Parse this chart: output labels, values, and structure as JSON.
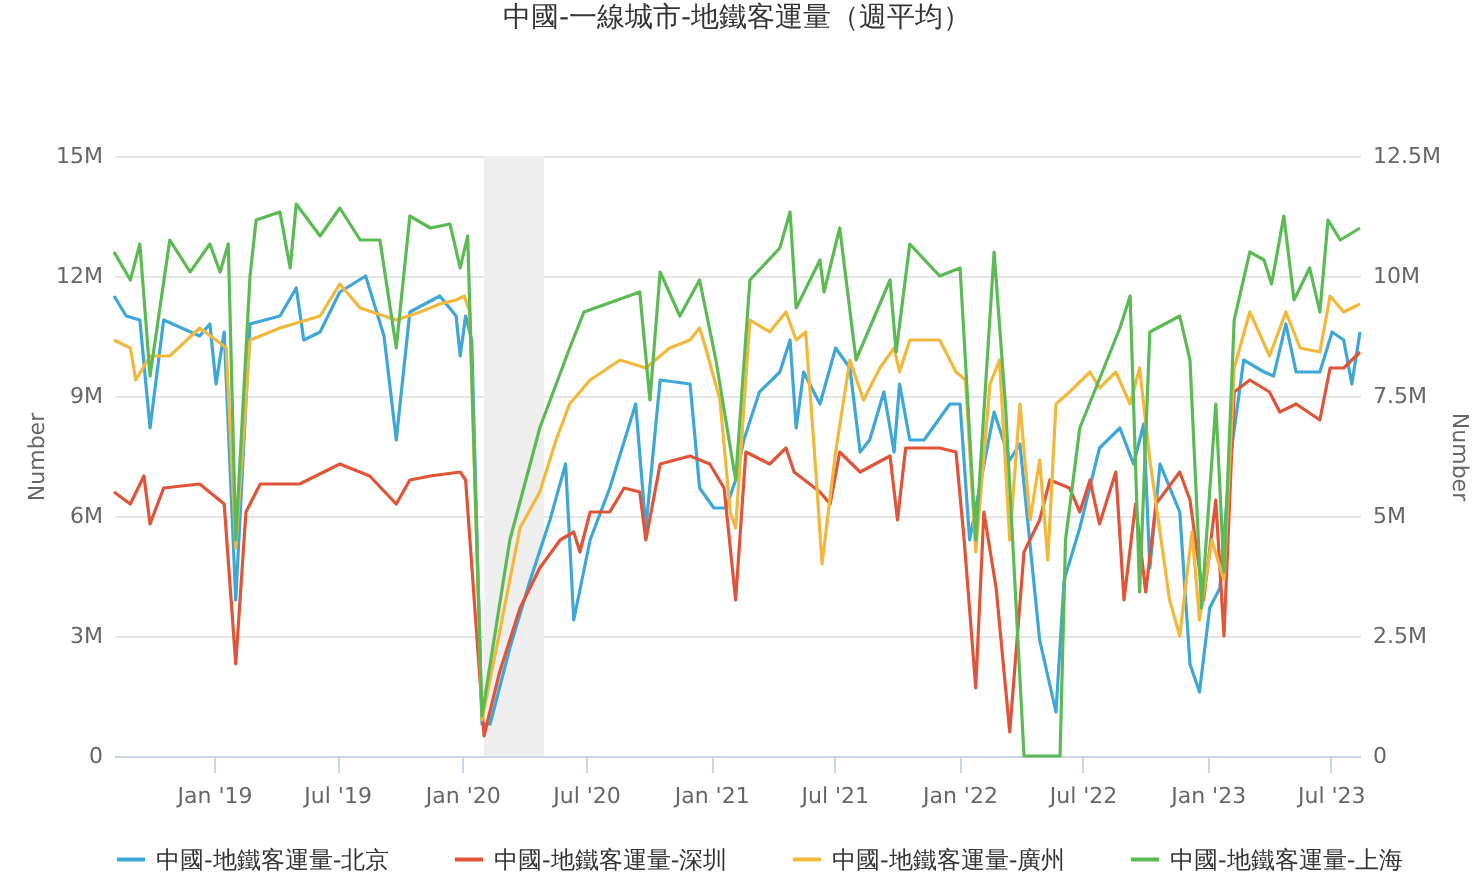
{
  "chart_data": {
    "type": "line",
    "title": "中國-一線城市-地鐵客運量（週平均）",
    "ylabel": "Number",
    "y2label": "Number",
    "xlim": [
      "2018-08-07",
      "2023-08-13"
    ],
    "xticks": [
      {
        "value": "2019-01-01",
        "label": "Jan '19"
      },
      {
        "value": "2019-07-01",
        "label": "Jul '19"
      },
      {
        "value": "2020-01-01",
        "label": "Jan '20"
      },
      {
        "value": "2020-07-01",
        "label": "Jul '20"
      },
      {
        "value": "2021-01-01",
        "label": "Jan '21"
      },
      {
        "value": "2021-07-01",
        "label": "Jul '21"
      },
      {
        "value": "2022-01-01",
        "label": "Jan '22"
      },
      {
        "value": "2022-07-01",
        "label": "Jul '22"
      },
      {
        "value": "2023-01-01",
        "label": "Jan '23"
      },
      {
        "value": "2023-07-01",
        "label": "Jul '23"
      }
    ],
    "ylim": [
      0,
      15
    ],
    "yticks": [
      {
        "value": 0,
        "label": "0"
      },
      {
        "value": 3,
        "label": "3M"
      },
      {
        "value": 6,
        "label": "6M"
      },
      {
        "value": 9,
        "label": "9M"
      },
      {
        "value": 12,
        "label": "12M"
      },
      {
        "value": 15,
        "label": "15M"
      }
    ],
    "y2lim": [
      0,
      12.5
    ],
    "y2ticks": [
      {
        "value": 0,
        "label": "0"
      },
      {
        "value": 2.5,
        "label": "2.5M"
      },
      {
        "value": 5,
        "label": "5M"
      },
      {
        "value": 7.5,
        "label": "7.5M"
      },
      {
        "value": 10,
        "label": "10M"
      },
      {
        "value": 12.5,
        "label": "12.5M"
      }
    ],
    "grid": "y",
    "legend": "bottom",
    "marker": "none",
    "line_style": "solid",
    "bands": [
      {
        "axis": "x",
        "from": "2020-02-02",
        "to": "2020-04-30",
        "color": "#eeeeee"
      }
    ],
    "series": [
      {
        "name": "中國-地鐵客運量-北京",
        "color": "#3ea7d8",
        "x": [
          "2018-08-07",
          "2018-08-25",
          "2018-09-14",
          "2018-09-29",
          "2018-10-19",
          "2018-12-11",
          "2018-12-26",
          "2019-01-04",
          "2019-01-16",
          "2019-02-02",
          "2019-02-23",
          "2019-04-08",
          "2019-05-02",
          "2019-05-13",
          "2019-06-06",
          "2019-07-05",
          "2019-08-12",
          "2019-09-08",
          "2019-09-26",
          "2019-10-16",
          "2019-11-29",
          "2019-12-23",
          "2019-12-29",
          "2020-01-06",
          "2020-01-15",
          "2020-01-30",
          "2020-02-11",
          "2020-03-11",
          "2020-04-10",
          "2020-05-09",
          "2020-06-01",
          "2020-06-13",
          "2020-07-07",
          "2020-08-05",
          "2020-09-12",
          "2020-09-27",
          "2020-10-18",
          "2020-12-01",
          "2020-12-15",
          "2021-01-05",
          "2021-01-23",
          "2021-02-06",
          "2021-02-18",
          "2021-03-13",
          "2021-04-12",
          "2021-04-27",
          "2021-05-06",
          "2021-05-17",
          "2021-06-10",
          "2021-07-03",
          "2021-07-24",
          "2021-08-08",
          "2021-08-22",
          "2021-09-12",
          "2021-09-27",
          "2021-10-05",
          "2021-10-20",
          "2021-11-10",
          "2021-12-18",
          "2022-01-02",
          "2022-01-16",
          "2022-02-21",
          "2022-03-16",
          "2022-03-31",
          "2022-04-29",
          "2022-05-23",
          "2022-06-04",
          "2022-06-27",
          "2022-07-26",
          "2022-08-25",
          "2022-09-14",
          "2022-09-29",
          "2022-10-08",
          "2022-10-23",
          "2022-11-21",
          "2022-12-06",
          "2022-12-20",
          "2023-01-04",
          "2023-01-19",
          "2023-02-03",
          "2023-02-23",
          "2023-03-25",
          "2023-04-08",
          "2023-04-26",
          "2023-05-11",
          "2023-06-15",
          "2023-07-03",
          "2023-07-20",
          "2023-08-01",
          "2023-08-13"
        ],
        "values": [
          11.5,
          11.0,
          10.9,
          8.2,
          10.9,
          10.5,
          10.8,
          9.3,
          10.6,
          3.9,
          10.8,
          11.0,
          11.7,
          10.4,
          10.6,
          11.6,
          12.0,
          10.5,
          7.9,
          11.1,
          11.5,
          11.0,
          10.0,
          11.0,
          10.4,
          0.8,
          0.8,
          2.7,
          4.4,
          5.9,
          7.3,
          3.4,
          5.4,
          6.7,
          8.8,
          5.7,
          9.4,
          9.3,
          6.7,
          6.2,
          6.2,
          6.9,
          7.9,
          9.1,
          9.6,
          10.4,
          8.2,
          9.6,
          8.8,
          10.2,
          9.7,
          7.6,
          7.9,
          9.1,
          7.6,
          9.3,
          7.9,
          7.9,
          8.8,
          8.8,
          5.4,
          8.6,
          7.4,
          7.8,
          2.9,
          1.1,
          4.4,
          5.7,
          7.7,
          8.2,
          7.3,
          8.3,
          4.7,
          7.3,
          6.1,
          2.3,
          1.6,
          3.7,
          4.2,
          7.4,
          9.9,
          9.6,
          9.5,
          10.8,
          9.6,
          9.6,
          10.6,
          10.4,
          9.3,
          10.6
        ]
      },
      {
        "name": "中國-地鐵客運量-深圳",
        "color": "#e0553a",
        "x": [
          "2018-08-07",
          "2018-08-31",
          "2018-09-20",
          "2018-09-29",
          "2018-10-19",
          "2018-12-11",
          "2019-01-16",
          "2019-02-02",
          "2019-02-17",
          "2019-03-10",
          "2019-05-07",
          "2019-07-05",
          "2019-08-18",
          "2019-09-26",
          "2019-10-16",
          "2019-11-15",
          "2019-12-29",
          "2020-01-06",
          "2020-02-02",
          "2020-02-25",
          "2020-03-26",
          "2020-04-24",
          "2020-05-24",
          "2020-06-13",
          "2020-06-22",
          "2020-07-07",
          "2020-08-05",
          "2020-08-26",
          "2020-09-18",
          "2020-09-27",
          "2020-10-18",
          "2020-12-01",
          "2020-12-30",
          "2021-01-20",
          "2021-02-06",
          "2021-02-21",
          "2021-03-28",
          "2021-04-21",
          "2021-05-03",
          "2021-06-10",
          "2021-06-25",
          "2021-07-09",
          "2021-08-08",
          "2021-09-21",
          "2021-10-02",
          "2021-10-14",
          "2021-12-03",
          "2021-12-27",
          "2022-01-08",
          "2022-01-25",
          "2022-02-06",
          "2022-02-24",
          "2022-03-16",
          "2022-04-06",
          "2022-04-29",
          "2022-05-14",
          "2022-06-12",
          "2022-06-27",
          "2022-07-12",
          "2022-07-26",
          "2022-08-19",
          "2022-08-31",
          "2022-09-17",
          "2022-10-02",
          "2022-10-17",
          "2022-11-21",
          "2022-12-06",
          "2022-12-26",
          "2023-01-13",
          "2023-01-25",
          "2023-02-09",
          "2023-03-04",
          "2023-04-02",
          "2023-04-17",
          "2023-05-11",
          "2023-06-15",
          "2023-06-30",
          "2023-07-20",
          "2023-08-13"
        ],
        "values": [
          6.6,
          6.3,
          7.0,
          5.8,
          6.7,
          6.8,
          6.3,
          2.3,
          6.1,
          6.8,
          6.8,
          7.3,
          7.0,
          6.3,
          6.9,
          7.0,
          7.1,
          6.9,
          0.5,
          2.1,
          3.7,
          4.7,
          5.4,
          5.6,
          5.1,
          6.1,
          6.1,
          6.7,
          6.6,
          5.4,
          7.3,
          7.5,
          7.3,
          6.7,
          3.9,
          7.6,
          7.3,
          7.7,
          7.1,
          6.6,
          6.3,
          7.6,
          7.1,
          7.5,
          5.9,
          7.7,
          7.7,
          7.6,
          5.4,
          1.7,
          6.1,
          4.2,
          0.6,
          5.1,
          5.9,
          6.9,
          6.7,
          6.1,
          6.9,
          5.8,
          7.1,
          3.9,
          6.3,
          4.1,
          6.3,
          7.1,
          6.4,
          3.9,
          6.4,
          3.0,
          9.1,
          9.4,
          9.1,
          8.6,
          8.8,
          8.4,
          9.7,
          9.7,
          10.1
        ]
      },
      {
        "name": "中國-地鐵客運量-廣州",
        "color": "#f2b83c",
        "x": [
          "2018-08-07",
          "2018-08-31",
          "2018-09-08",
          "2018-09-29",
          "2018-10-28",
          "2018-12-11",
          "2019-01-04",
          "2019-01-19",
          "2019-02-02",
          "2019-02-23",
          "2019-04-08",
          "2019-06-06",
          "2019-07-05",
          "2019-08-04",
          "2019-09-26",
          "2019-10-31",
          "2019-11-29",
          "2019-12-23",
          "2020-01-04",
          "2020-01-12",
          "2020-01-30",
          "2020-02-25",
          "2020-03-26",
          "2020-04-24",
          "2020-05-18",
          "2020-06-07",
          "2020-07-07",
          "2020-08-20",
          "2020-09-27",
          "2020-11-01",
          "2020-12-01",
          "2020-12-15",
          "2020-12-24",
          "2021-01-14",
          "2021-01-29",
          "2021-02-06",
          "2021-02-27",
          "2021-03-28",
          "2021-04-21",
          "2021-05-06",
          "2021-05-20",
          "2021-06-04",
          "2021-06-13",
          "2021-07-03",
          "2021-07-24",
          "2021-08-13",
          "2021-09-06",
          "2021-09-27",
          "2021-10-05",
          "2021-10-20",
          "2021-12-03",
          "2021-12-27",
          "2022-01-10",
          "2022-01-25",
          "2022-02-15",
          "2022-03-01",
          "2022-03-16",
          "2022-03-31",
          "2022-04-15",
          "2022-04-29",
          "2022-05-11",
          "2022-05-23",
          "2022-06-12",
          "2022-07-12",
          "2022-07-26",
          "2022-08-19",
          "2022-09-09",
          "2022-09-23",
          "2022-10-08",
          "2022-11-06",
          "2022-11-21",
          "2022-12-09",
          "2022-12-20",
          "2023-01-07",
          "2023-01-25",
          "2023-02-09",
          "2023-03-04",
          "2023-04-02",
          "2023-04-26",
          "2023-05-17",
          "2023-06-15",
          "2023-06-30",
          "2023-07-20",
          "2023-08-13"
        ],
        "values": [
          10.4,
          10.2,
          9.4,
          10.0,
          10.0,
          10.7,
          10.4,
          10.2,
          5.2,
          10.4,
          10.7,
          11.0,
          11.8,
          11.2,
          10.9,
          11.1,
          11.3,
          11.4,
          11.5,
          11.1,
          0.9,
          3.1,
          5.7,
          6.6,
          7.9,
          8.8,
          9.4,
          9.9,
          9.7,
          10.2,
          10.4,
          10.7,
          10.2,
          8.9,
          6.1,
          5.7,
          10.9,
          10.6,
          11.1,
          10.4,
          10.6,
          7.1,
          4.8,
          7.6,
          9.9,
          8.9,
          9.7,
          10.2,
          9.6,
          10.4,
          10.4,
          9.6,
          9.4,
          5.1,
          9.3,
          9.9,
          5.4,
          8.8,
          5.9,
          7.4,
          4.9,
          8.8,
          9.1,
          9.6,
          9.2,
          9.6,
          8.8,
          9.7,
          7.4,
          3.9,
          3.0,
          5.6,
          3.4,
          5.4,
          4.4,
          9.7,
          11.1,
          10.0,
          11.1,
          10.2,
          10.1,
          11.5,
          11.1,
          11.3
        ]
      },
      {
        "name": "中國-地鐵客運量-上海",
        "color": "#5cba55",
        "x": [
          "2018-08-07",
          "2018-08-31",
          "2018-09-14",
          "2018-09-29",
          "2018-10-28",
          "2018-11-27",
          "2018-12-26",
          "2019-01-10",
          "2019-01-22",
          "2019-02-02",
          "2019-02-23",
          "2019-03-04",
          "2019-04-08",
          "2019-04-23",
          "2019-05-02",
          "2019-06-06",
          "2019-07-05",
          "2019-08-04",
          "2019-09-02",
          "2019-09-26",
          "2019-10-16",
          "2019-11-15",
          "2019-12-14",
          "2019-12-29",
          "2020-01-09",
          "2020-01-30",
          "2020-03-11",
          "2020-04-24",
          "2020-06-07",
          "2020-06-28",
          "2020-09-18",
          "2020-10-03",
          "2020-10-18",
          "2020-11-16",
          "2020-12-15",
          "2021-01-08",
          "2021-02-06",
          "2021-02-27",
          "2021-04-12",
          "2021-04-27",
          "2021-05-06",
          "2021-06-10",
          "2021-06-16",
          "2021-07-09",
          "2021-08-02",
          "2021-09-21",
          "2021-09-30",
          "2021-10-20",
          "2021-12-03",
          "2022-01-02",
          "2022-01-25",
          "2022-02-21",
          "2022-03-10",
          "2022-04-06",
          "2022-05-29",
          "2022-06-06",
          "2022-06-27",
          "2022-08-25",
          "2022-09-09",
          "2022-09-23",
          "2022-10-08",
          "2022-11-21",
          "2022-12-06",
          "2022-12-23",
          "2023-01-13",
          "2023-01-25",
          "2023-02-09",
          "2023-03-04",
          "2023-03-25",
          "2023-04-05",
          "2023-04-23",
          "2023-05-08",
          "2023-05-31",
          "2023-06-15",
          "2023-06-27",
          "2023-07-15",
          "2023-08-13"
        ],
        "values": [
          12.6,
          11.9,
          12.8,
          9.5,
          12.9,
          12.1,
          12.8,
          12.1,
          12.8,
          5.4,
          12.0,
          13.4,
          13.6,
          12.2,
          13.8,
          13.0,
          13.7,
          12.9,
          12.9,
          10.2,
          13.5,
          13.2,
          13.3,
          12.2,
          13.0,
          1.0,
          5.4,
          8.2,
          10.2,
          11.1,
          11.6,
          8.9,
          12.1,
          11.0,
          11.9,
          9.9,
          6.9,
          11.9,
          12.7,
          13.6,
          11.2,
          12.4,
          11.6,
          13.2,
          9.9,
          11.9,
          10.1,
          12.8,
          12.0,
          12.2,
          5.4,
          12.6,
          8.7,
          0,
          0,
          5.4,
          8.2,
          10.7,
          11.5,
          4.1,
          10.6,
          11.0,
          9.9,
          3.7,
          8.8,
          4.6,
          10.9,
          12.6,
          12.4,
          11.8,
          13.5,
          11.4,
          12.2,
          11.1,
          13.4,
          12.9,
          13.2
        ]
      }
    ]
  }
}
